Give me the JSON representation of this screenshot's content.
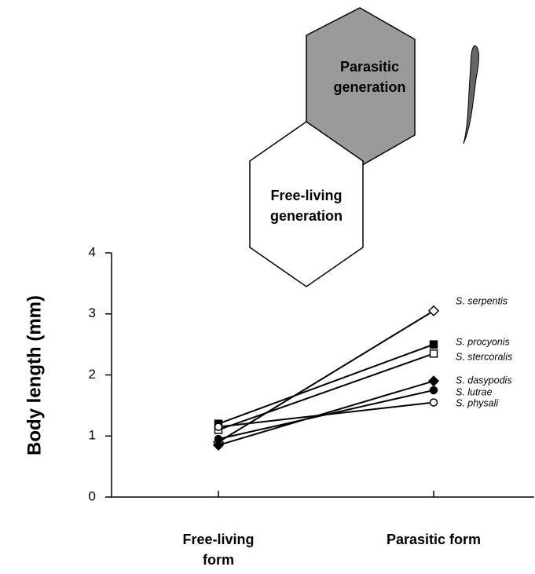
{
  "chart_data": {
    "type": "line",
    "annotations": [
      "Parasitic generation",
      "Free-living generation"
    ],
    "ylabel": "Body length (mm)",
    "categories": [
      "Free-living form",
      "Parasitic form"
    ],
    "ylim": [
      0,
      4
    ],
    "yticks": [
      0,
      1,
      2,
      3,
      4
    ],
    "series": [
      {
        "name": "S. serpentis",
        "color": "#000000",
        "marker": "open-diamond",
        "values": [
          0.9,
          3.05
        ]
      },
      {
        "name": "S. procyonis",
        "color": "#000000",
        "marker": "filled-square",
        "values": [
          1.2,
          2.5
        ]
      },
      {
        "name": "S. stercoralis",
        "color": "#000000",
        "marker": "open-square",
        "values": [
          1.1,
          2.35
        ]
      },
      {
        "name": "S. dasypodis",
        "color": "#000000",
        "marker": "filled-diamond",
        "values": [
          0.85,
          1.9
        ]
      },
      {
        "name": "S. lutrae",
        "color": "#000000",
        "marker": "filled-circle",
        "values": [
          0.95,
          1.75
        ]
      },
      {
        "name": "S. physali",
        "color": "#000000",
        "marker": "open-circle",
        "values": [
          1.15,
          1.55
        ]
      }
    ]
  }
}
